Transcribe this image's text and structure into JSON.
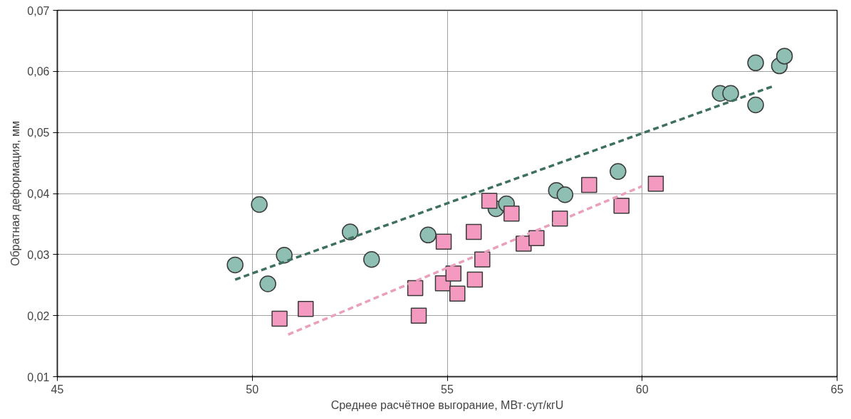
{
  "chart_data": {
    "type": "scatter",
    "xlabel": "Среднее расчётное выгорание, МВт·сут/кгU",
    "ylabel": "Обратная деформация, мм",
    "xlim": [
      45,
      65
    ],
    "xticks": [
      45,
      50,
      55,
      60,
      65
    ],
    "ylim": [
      0.01,
      0.07
    ],
    "yticks": [
      {
        "value": 0.01,
        "label": "0,01"
      },
      {
        "value": 0.02,
        "label": "0,02"
      },
      {
        "value": 0.03,
        "label": "0,03"
      },
      {
        "value": 0.04,
        "label": "0,04"
      },
      {
        "value": 0.05,
        "label": "0,05"
      },
      {
        "value": 0.06,
        "label": "0,06"
      },
      {
        "value": 0.07,
        "label": "0,07"
      }
    ],
    "grid": true,
    "series": [
      {
        "marker": "circle",
        "color": "#8fbfb2",
        "x": [
          49.56,
          50.18,
          50.82,
          50.4,
          52.51,
          53.06,
          54.51,
          56.25,
          56.52,
          57.8,
          58.02,
          59.38,
          62.0,
          62.27,
          62.91,
          63.52,
          63.65,
          62.91
        ],
        "values": [
          0.0283,
          0.0382,
          0.0299,
          0.0252,
          0.0337,
          0.0292,
          0.0332,
          0.0375,
          0.0383,
          0.0405,
          0.0398,
          0.0436,
          0.0564,
          0.0564,
          0.0614,
          0.0609,
          0.0625,
          0.0545
        ]
      },
      {
        "marker": "square",
        "color": "#f49ac1",
        "x": [
          50.7,
          51.37,
          54.18,
          54.27,
          54.91,
          54.89,
          55.16,
          55.26,
          55.68,
          55.9,
          55.71,
          56.08,
          56.65,
          56.96,
          57.29,
          57.89,
          58.64,
          59.47,
          60.35
        ],
        "values": [
          0.0195,
          0.0211,
          0.0245,
          0.02,
          0.0321,
          0.0253,
          0.0269,
          0.0236,
          0.0337,
          0.0292,
          0.0259,
          0.0388,
          0.0367,
          0.0318,
          0.0327,
          0.0359,
          0.0414,
          0.038,
          0.0416
        ]
      },
      {
        "type": "line",
        "line_style": "dashed",
        "color": "#3e7060",
        "x": [
          49.56,
          63.37
        ],
        "values": [
          0.0259,
          0.0576
        ]
      },
      {
        "type": "line",
        "line_style": "dashed",
        "color": "#e8a0bc",
        "x": [
          50.92,
          60.0
        ],
        "values": [
          0.0169,
          0.0412
        ]
      }
    ]
  }
}
